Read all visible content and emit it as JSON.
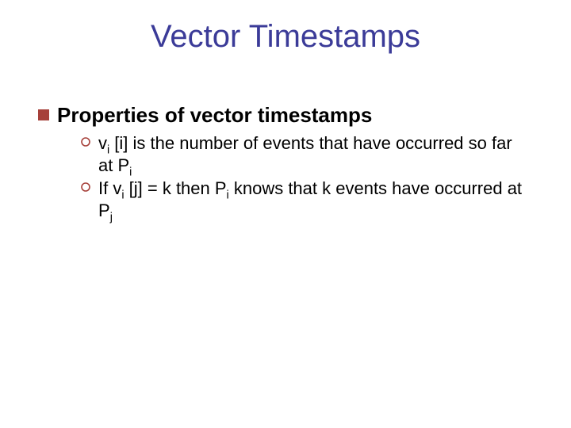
{
  "title": {
    "text": "Vector Timestamps",
    "color": "#3b3b98"
  },
  "text_color": "#000000",
  "bullets": {
    "level1": {
      "fill": "#a6403a",
      "size": 14
    },
    "level2": {
      "stroke": "#a6403a",
      "fill": "#ffffff",
      "size": 12,
      "stroke_width": 1.6
    }
  },
  "level1_item": {
    "text": "Properties of vector timestamps"
  },
  "level2_items": [
    {
      "segments": [
        {
          "t": "v"
        },
        {
          "t": "i",
          "sub": true
        },
        {
          "t": " [i] is the number of events that have occurred so far at P"
        },
        {
          "t": "i",
          "sub": true
        }
      ]
    },
    {
      "segments": [
        {
          "t": "If v"
        },
        {
          "t": "i",
          "sub": true
        },
        {
          "t": " [j] = k then P"
        },
        {
          "t": "i",
          "sub": true
        },
        {
          "t": " knows that k events have occurred at P"
        },
        {
          "t": "j",
          "sub": true
        }
      ]
    }
  ]
}
